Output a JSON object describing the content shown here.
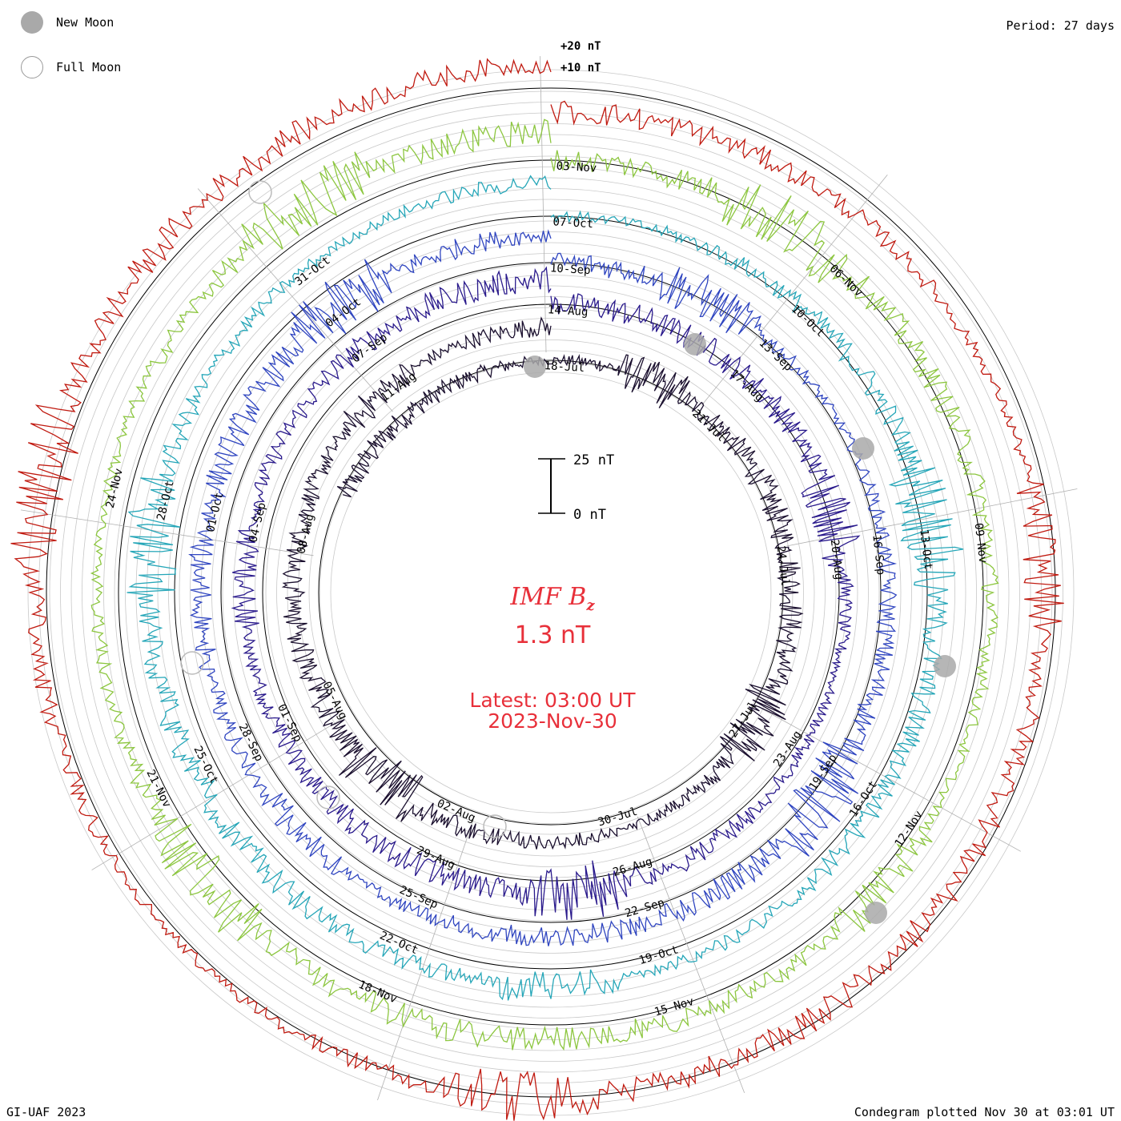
{
  "header": {
    "period": "Period: 27 days",
    "credit": "GI-UAF 2023",
    "plotted": "Condegram plotted Nov 30 at 03:01 UT"
  },
  "legend": {
    "new_moon": "New Moon",
    "full_moon": "Full Moon"
  },
  "center": {
    "title_main": "IMF B",
    "title_sub": "z",
    "value": "1.3 nT",
    "latest_label": "Latest: 03:00 UT",
    "latest_date": "2023-Nov-30"
  },
  "scale_bar": {
    "top": "25 nT",
    "bottom": "0 nT"
  },
  "rings": {
    "plus20": "+20 nT",
    "plus10": "+10 nT"
  },
  "colors": {
    "accent": "#e8303a",
    "moon": "#a9a9a9",
    "grid": "#c8c8c8"
  },
  "chart_data": {
    "type": "line",
    "title": "IMF Bz",
    "current_value": 1.3,
    "unit": "nT",
    "period_days": 27,
    "scale_nT": 25,
    "cycles": [
      {
        "color": "#1a0f2e",
        "labels": [
          "18-Jul",
          "21-Jul",
          "24-Jul",
          "27-Jul",
          "30-Jul",
          "02-Aug",
          "05-Aug",
          "08-Aug",
          "11-Aug"
        ]
      },
      {
        "color": "#2a1a8c",
        "labels": [
          "14-Aug",
          "17-Aug",
          "20-Aug",
          "23-Aug",
          "26-Aug",
          "29-Aug",
          "01-Sep",
          "04-Sep",
          "07-Sep"
        ]
      },
      {
        "color": "#2f45c0",
        "labels": [
          "10-Sep",
          "13-Sep",
          "16-Sep",
          "19-Sep",
          "22-Sep",
          "25-Sep",
          "28-Sep",
          "01-Oct",
          "04-Oct"
        ]
      },
      {
        "color": "#25a6b8",
        "labels": [
          "07-Oct",
          "10-Oct",
          "13-Oct",
          "16-Oct",
          "19-Oct",
          "22-Oct",
          "25-Oct",
          "28-Oct",
          "31-Oct"
        ]
      },
      {
        "color": "#8cc63f",
        "labels": [
          "03-Nov",
          "06-Nov",
          "09-Nov",
          "12-Nov",
          "15-Nov",
          "18-Nov",
          "21-Nov",
          "24-Nov",
          ""
        ]
      },
      {
        "color": "#c01a10",
        "labels": [
          "",
          "",
          "",
          "",
          "",
          "",
          "",
          "",
          ""
        ]
      }
    ]
  }
}
